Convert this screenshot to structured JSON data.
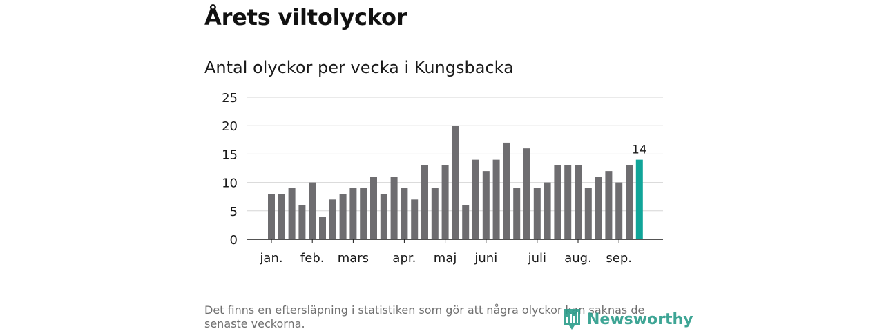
{
  "header": {
    "title": "Årets viltolyckor",
    "subtitle": "Antal olyckor per vecka i Kungsbacka"
  },
  "footer": {
    "note": "Det finns en eftersläpning i statistiken som gör att några olyckor kan saknas de senaste veckorna.",
    "brand": "Newsworthy"
  },
  "colors": {
    "bar": "#6e6d70",
    "highlight": "#10a599",
    "grid": "#d6d6d6",
    "axis": "#1a1a1a",
    "brand": "#2a9c8a"
  },
  "chart_data": {
    "type": "bar",
    "title": "Antal olyckor per vecka i Kungsbacka",
    "xlabel": "",
    "ylabel": "",
    "ylim": [
      0,
      25
    ],
    "yticks": [
      0,
      5,
      10,
      15,
      20,
      25
    ],
    "grid": true,
    "values": [
      8,
      8,
      9,
      6,
      10,
      4,
      7,
      8,
      9,
      9,
      11,
      8,
      11,
      9,
      7,
      13,
      9,
      13,
      20,
      6,
      14,
      12,
      14,
      17,
      9,
      16,
      9,
      10,
      13,
      13,
      13,
      9,
      11,
      12,
      10,
      13,
      14
    ],
    "highlight_index": 36,
    "highlight_label": "14",
    "month_labels": [
      {
        "label": "jan.",
        "index": 0
      },
      {
        "label": "feb.",
        "index": 4
      },
      {
        "label": "mars",
        "index": 8
      },
      {
        "label": "apr.",
        "index": 13
      },
      {
        "label": "maj",
        "index": 17
      },
      {
        "label": "juni",
        "index": 21
      },
      {
        "label": "juli",
        "index": 26
      },
      {
        "label": "aug.",
        "index": 30
      },
      {
        "label": "sep.",
        "index": 34
      }
    ]
  }
}
